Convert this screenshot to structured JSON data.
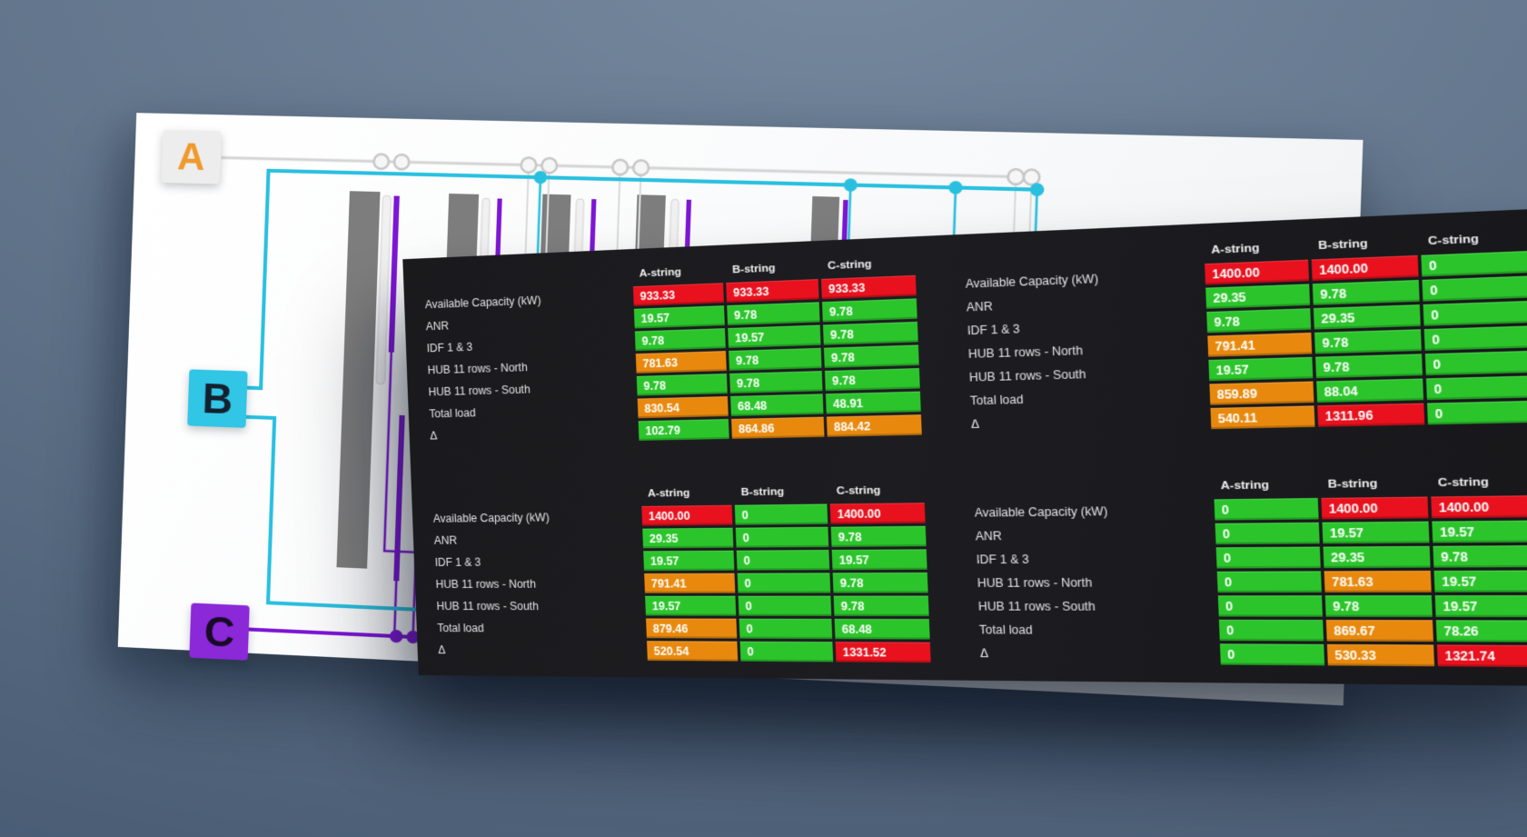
{
  "background": {
    "gradient_top": "#75889e",
    "gradient_bottom": "#455871"
  },
  "schematic": {
    "feeds": [
      {
        "id": "A",
        "letter_color": "#f09a2c",
        "box_color": "#ededee",
        "line_color": "#d4d4d4"
      },
      {
        "id": "B",
        "letter_color": "#13212e",
        "box_color": "#31c5e6",
        "line_color": "#29c0e0"
      },
      {
        "id": "C",
        "letter_color": "#170b28",
        "box_color": "#8b28d8",
        "line_color": "#7d15d6"
      }
    ],
    "rack_color": "#7d7d7d",
    "node_fill": "#f6f6f6",
    "node_stroke": "#c7c7c7"
  },
  "dashboard": {
    "background": "#1a1a1d",
    "columns": [
      "A-string",
      "B-string",
      "C-string"
    ],
    "row_labels": [
      "Available Capacity (kW)",
      "ANR",
      "IDF 1 & 3",
      "HUB 11 rows - North",
      "HUB 11 rows - South",
      "Total load",
      "Δ"
    ],
    "status_colors": {
      "green": "#2bc52b",
      "orange": "#e8890e",
      "red": "#e8111d"
    },
    "tables": [
      {
        "position": "top-left",
        "rows": [
          {
            "label": "Available Capacity (kW)",
            "values": [
              "933.33",
              "933.33",
              "933.33"
            ],
            "colors": [
              "red",
              "red",
              "red"
            ]
          },
          {
            "label": "ANR",
            "values": [
              "19.57",
              "9.78",
              "9.78"
            ],
            "colors": [
              "green",
              "green",
              "green"
            ]
          },
          {
            "label": "IDF 1 & 3",
            "values": [
              "9.78",
              "19.57",
              "9.78"
            ],
            "colors": [
              "green",
              "green",
              "green"
            ]
          },
          {
            "label": "HUB 11 rows - North",
            "values": [
              "781.63",
              "9.78",
              "9.78"
            ],
            "colors": [
              "orange",
              "green",
              "green"
            ]
          },
          {
            "label": "HUB 11 rows - South",
            "values": [
              "9.78",
              "9.78",
              "9.78"
            ],
            "colors": [
              "green",
              "green",
              "green"
            ]
          },
          {
            "label": "Total load",
            "values": [
              "830.54",
              "68.48",
              "48.91"
            ],
            "colors": [
              "orange",
              "green",
              "green"
            ]
          },
          {
            "label": "Δ",
            "values": [
              "102.79",
              "864.86",
              "884.42"
            ],
            "colors": [
              "green",
              "orange",
              "orange"
            ]
          }
        ]
      },
      {
        "position": "top-right",
        "rows": [
          {
            "label": "Available Capacity (kW)",
            "values": [
              "1400.00",
              "1400.00",
              "0"
            ],
            "colors": [
              "red",
              "red",
              "green"
            ]
          },
          {
            "label": "ANR",
            "values": [
              "29.35",
              "9.78",
              "0"
            ],
            "colors": [
              "green",
              "green",
              "green"
            ]
          },
          {
            "label": "IDF 1 & 3",
            "values": [
              "9.78",
              "29.35",
              "0"
            ],
            "colors": [
              "green",
              "green",
              "green"
            ]
          },
          {
            "label": "HUB 11 rows - North",
            "values": [
              "791.41",
              "9.78",
              "0"
            ],
            "colors": [
              "orange",
              "green",
              "green"
            ]
          },
          {
            "label": "HUB 11 rows - South",
            "values": [
              "19.57",
              "9.78",
              "0"
            ],
            "colors": [
              "green",
              "green",
              "green"
            ]
          },
          {
            "label": "Total load",
            "values": [
              "859.89",
              "88.04",
              "0"
            ],
            "colors": [
              "orange",
              "green",
              "green"
            ]
          },
          {
            "label": "Δ",
            "values": [
              "540.11",
              "1311.96",
              "0"
            ],
            "colors": [
              "orange",
              "red",
              "green"
            ]
          }
        ]
      },
      {
        "position": "bottom-left",
        "rows": [
          {
            "label": "Available Capacity (kW)",
            "values": [
              "1400.00",
              "0",
              "1400.00"
            ],
            "colors": [
              "red",
              "green",
              "red"
            ]
          },
          {
            "label": "ANR",
            "values": [
              "29.35",
              "0",
              "9.78"
            ],
            "colors": [
              "green",
              "green",
              "green"
            ]
          },
          {
            "label": "IDF 1 & 3",
            "values": [
              "19.57",
              "0",
              "19.57"
            ],
            "colors": [
              "green",
              "green",
              "green"
            ]
          },
          {
            "label": "HUB 11 rows - North",
            "values": [
              "791.41",
              "0",
              "9.78"
            ],
            "colors": [
              "orange",
              "green",
              "green"
            ]
          },
          {
            "label": "HUB 11 rows - South",
            "values": [
              "19.57",
              "0",
              "9.78"
            ],
            "colors": [
              "green",
              "green",
              "green"
            ]
          },
          {
            "label": "Total load",
            "values": [
              "879.46",
              "0",
              "68.48"
            ],
            "colors": [
              "orange",
              "green",
              "green"
            ]
          },
          {
            "label": "Δ",
            "values": [
              "520.54",
              "0",
              "1331.52"
            ],
            "colors": [
              "orange",
              "green",
              "red"
            ]
          }
        ]
      },
      {
        "position": "bottom-right",
        "rows": [
          {
            "label": "Available Capacity (kW)",
            "values": [
              "0",
              "1400.00",
              "1400.00"
            ],
            "colors": [
              "green",
              "red",
              "red"
            ]
          },
          {
            "label": "ANR",
            "values": [
              "0",
              "19.57",
              "19.57"
            ],
            "colors": [
              "green",
              "green",
              "green"
            ]
          },
          {
            "label": "IDF 1 & 3",
            "values": [
              "0",
              "29.35",
              "9.78"
            ],
            "colors": [
              "green",
              "green",
              "green"
            ]
          },
          {
            "label": "HUB 11 rows - North",
            "values": [
              "0",
              "781.63",
              "19.57"
            ],
            "colors": [
              "green",
              "orange",
              "green"
            ]
          },
          {
            "label": "HUB 11 rows - South",
            "values": [
              "0",
              "9.78",
              "19.57"
            ],
            "colors": [
              "green",
              "green",
              "green"
            ]
          },
          {
            "label": "Total load",
            "values": [
              "0",
              "869.67",
              "78.26"
            ],
            "colors": [
              "green",
              "orange",
              "green"
            ]
          },
          {
            "label": "Δ",
            "values": [
              "0",
              "530.33",
              "1321.74"
            ],
            "colors": [
              "green",
              "orange",
              "red"
            ]
          }
        ]
      }
    ]
  }
}
